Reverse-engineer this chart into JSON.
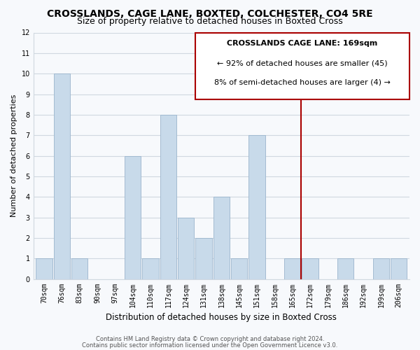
{
  "title": "CROSSLANDS, CAGE LANE, BOXTED, COLCHESTER, CO4 5RE",
  "subtitle": "Size of property relative to detached houses in Boxted Cross",
  "xlabel": "Distribution of detached houses by size in Boxted Cross",
  "ylabel": "Number of detached properties",
  "bar_color": "#c8daea",
  "bar_edge_color": "#9ab4cc",
  "categories": [
    "70sqm",
    "76sqm",
    "83sqm",
    "90sqm",
    "97sqm",
    "104sqm",
    "110sqm",
    "117sqm",
    "124sqm",
    "131sqm",
    "138sqm",
    "145sqm",
    "151sqm",
    "158sqm",
    "165sqm",
    "172sqm",
    "179sqm",
    "186sqm",
    "192sqm",
    "199sqm",
    "206sqm"
  ],
  "values": [
    1,
    10,
    1,
    0,
    0,
    6,
    1,
    8,
    3,
    2,
    4,
    1,
    7,
    0,
    1,
    1,
    0,
    1,
    0,
    1,
    1
  ],
  "ylim": [
    0,
    12
  ],
  "yticks": [
    0,
    1,
    2,
    3,
    4,
    5,
    6,
    7,
    8,
    9,
    10,
    11,
    12
  ],
  "marker_color": "#aa0000",
  "annotation_title": "CROSSLANDS CAGE LANE: 169sqm",
  "annotation_line1": "← 92% of detached houses are smaller (45)",
  "annotation_line2": "8% of semi-detached houses are larger (4) →",
  "footer1": "Contains HM Land Registry data © Crown copyright and database right 2024.",
  "footer2": "Contains public sector information licensed under the Open Government Licence v3.0.",
  "bg_color": "#f7f9fc",
  "plot_bg_color": "#f7f9fc",
  "grid_color": "#d0d8e0",
  "title_fontsize": 10,
  "subtitle_fontsize": 9,
  "tick_fontsize": 7,
  "ylabel_fontsize": 8,
  "xlabel_fontsize": 8.5,
  "footer_fontsize": 6,
  "ann_fontsize": 8
}
